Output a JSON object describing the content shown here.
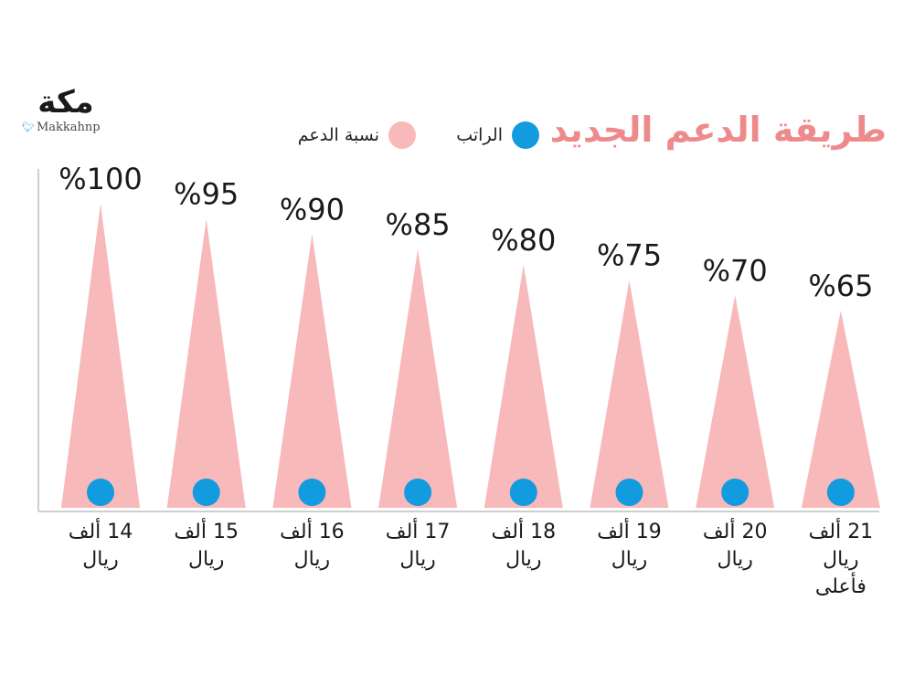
{
  "logo": {
    "word": "مكة",
    "handle": "Makkahnp",
    "icon": "twitter-bird-icon"
  },
  "colors": {
    "title": "#ee8a8c",
    "cone": "#f7b9b9",
    "dot": "#129bdf",
    "axis": "#cfcfcf"
  },
  "legend": {
    "salary": "الراتب",
    "support": "نسبة الدعم"
  },
  "chart_data": {
    "type": "bar",
    "title": "طريقة الدعم الجديد",
    "categories": [
      "14 ألف\nريال",
      "15 ألف\nريال",
      "16 ألف\nريال",
      "17 ألف\nريال",
      "18 ألف\nريال",
      "19 ألف\nريال",
      "20 ألف\nريال",
      "21 ألف\nريال\nفأعلى"
    ],
    "series": [
      {
        "name": "نسبة الدعم",
        "values": [
          100,
          95,
          90,
          85,
          80,
          75,
          70,
          65
        ]
      }
    ],
    "value_labels": [
      "%100",
      "%95",
      "%90",
      "%85",
      "%80",
      "%75",
      "%70",
      "%65"
    ],
    "ylim": [
      0,
      100
    ],
    "grid": false,
    "legend": "top"
  }
}
